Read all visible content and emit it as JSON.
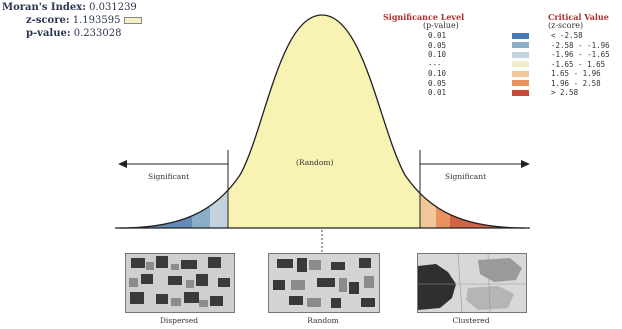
{
  "stats": {
    "moran_label": "Moran's Index:",
    "moran_value": "0.031239",
    "z_label": "z-score:",
    "z_value": "1.193595",
    "p_label": "p-value:",
    "p_value": "0.233028"
  },
  "legend": {
    "sig_title": "Significance Level",
    "sig_subtitle": "(p-value)",
    "crit_title": "Critical Value",
    "crit_subtitle": "(z-score)",
    "rows": [
      {
        "p": "0.01",
        "z": "< -2.58",
        "color": "#4a78b5"
      },
      {
        "p": "0.05",
        "z": "-2.58 - -1.96",
        "color": "#8aaec8"
      },
      {
        "p": "0.10",
        "z": "-1.96 - -1.65",
        "color": "#c3d3de"
      },
      {
        "p": "---",
        "z": "-1.65 - 1.65",
        "color": "#f2edc8"
      },
      {
        "p": "0.10",
        "z": "1.65 - 1.96",
        "color": "#f2c79c"
      },
      {
        "p": "0.05",
        "z": "1.96 - 2.58",
        "color": "#e7925f"
      },
      {
        "p": "0.01",
        "z": "> 2.58",
        "color": "#c84a35"
      }
    ]
  },
  "curve": {
    "random_label": "(Random)",
    "significant_left": "Significant",
    "significant_right": "Significant",
    "fill_color": "#f8f3b3"
  },
  "patterns": {
    "dispersed": "Dispersed",
    "random": "Random",
    "clustered": "Clustered"
  }
}
